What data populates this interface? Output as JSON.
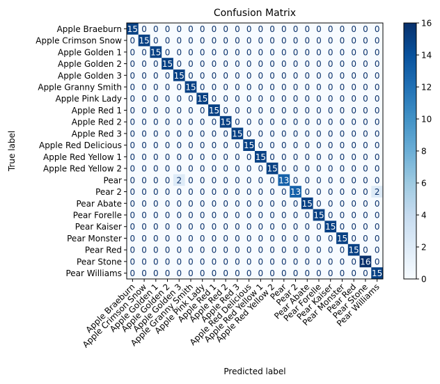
{
  "chart_data": {
    "type": "heatmap",
    "title": "Confusion Matrix",
    "xlabel": "Predicted label",
    "ylabel": "True label",
    "labels": [
      "Apple Braeburn",
      "Apple Crimson Snow",
      "Apple Golden 1",
      "Apple Golden 2",
      "Apple Golden 3",
      "Apple Granny Smith",
      "Apple Pink Lady",
      "Apple Red 1",
      "Apple Red 2",
      "Apple Red 3",
      "Apple Red Delicious",
      "Apple Red Yellow 1",
      "Apple Red Yellow 2",
      "Pear",
      "Pear 2",
      "Pear Abate",
      "Pear Forelle",
      "Pear Kaiser",
      "Pear Monster",
      "Pear Red",
      "Pear Stone",
      "Pear Williams"
    ],
    "matrix": [
      [
        15,
        0,
        0,
        0,
        0,
        0,
        0,
        0,
        0,
        0,
        0,
        0,
        0,
        0,
        0,
        0,
        0,
        0,
        0,
        0,
        0,
        0
      ],
      [
        0,
        15,
        0,
        0,
        0,
        0,
        0,
        0,
        0,
        0,
        0,
        0,
        0,
        0,
        0,
        0,
        0,
        0,
        0,
        0,
        0,
        0
      ],
      [
        0,
        0,
        15,
        0,
        0,
        0,
        0,
        0,
        0,
        0,
        0,
        0,
        0,
        0,
        0,
        0,
        0,
        0,
        0,
        0,
        0,
        0
      ],
      [
        0,
        0,
        0,
        15,
        0,
        0,
        0,
        0,
        0,
        0,
        0,
        0,
        0,
        0,
        0,
        0,
        0,
        0,
        0,
        0,
        0,
        0
      ],
      [
        0,
        0,
        0,
        0,
        15,
        0,
        0,
        0,
        0,
        0,
        0,
        0,
        0,
        0,
        0,
        0,
        0,
        0,
        0,
        0,
        0,
        0
      ],
      [
        0,
        0,
        0,
        0,
        0,
        15,
        0,
        0,
        0,
        0,
        0,
        0,
        0,
        0,
        0,
        0,
        0,
        0,
        0,
        0,
        0,
        0
      ],
      [
        0,
        0,
        0,
        0,
        0,
        0,
        15,
        0,
        0,
        0,
        0,
        0,
        0,
        0,
        0,
        0,
        0,
        0,
        0,
        0,
        0,
        0
      ],
      [
        0,
        0,
        0,
        0,
        0,
        0,
        0,
        15,
        0,
        0,
        0,
        0,
        0,
        0,
        0,
        0,
        0,
        0,
        0,
        0,
        0,
        0
      ],
      [
        0,
        0,
        0,
        0,
        0,
        0,
        0,
        0,
        15,
        0,
        0,
        0,
        0,
        0,
        0,
        0,
        0,
        0,
        0,
        0,
        0,
        0
      ],
      [
        0,
        0,
        0,
        0,
        0,
        0,
        0,
        0,
        0,
        15,
        0,
        0,
        0,
        0,
        0,
        0,
        0,
        0,
        0,
        0,
        0,
        0
      ],
      [
        0,
        0,
        0,
        0,
        0,
        0,
        0,
        0,
        0,
        0,
        15,
        0,
        0,
        0,
        0,
        0,
        0,
        0,
        0,
        0,
        0,
        0
      ],
      [
        0,
        0,
        0,
        0,
        0,
        0,
        0,
        0,
        0,
        0,
        0,
        15,
        0,
        0,
        0,
        0,
        0,
        0,
        0,
        0,
        0,
        0
      ],
      [
        0,
        0,
        0,
        0,
        0,
        0,
        0,
        0,
        0,
        0,
        0,
        0,
        15,
        0,
        0,
        0,
        0,
        0,
        0,
        0,
        0,
        0
      ],
      [
        0,
        0,
        0,
        0,
        2,
        0,
        0,
        0,
        0,
        0,
        0,
        0,
        0,
        13,
        0,
        0,
        0,
        0,
        0,
        0,
        0,
        0
      ],
      [
        0,
        0,
        0,
        0,
        0,
        0,
        0,
        0,
        0,
        0,
        0,
        0,
        0,
        0,
        13,
        0,
        0,
        0,
        0,
        0,
        0,
        2
      ],
      [
        0,
        0,
        0,
        0,
        0,
        0,
        0,
        0,
        0,
        0,
        0,
        0,
        0,
        0,
        0,
        15,
        0,
        0,
        0,
        0,
        0,
        0
      ],
      [
        0,
        0,
        0,
        0,
        0,
        0,
        0,
        0,
        0,
        0,
        0,
        0,
        0,
        0,
        0,
        0,
        15,
        0,
        0,
        0,
        0,
        0
      ],
      [
        0,
        0,
        0,
        0,
        0,
        0,
        0,
        0,
        0,
        0,
        0,
        0,
        0,
        0,
        0,
        0,
        0,
        15,
        0,
        0,
        0,
        0
      ],
      [
        0,
        0,
        0,
        0,
        0,
        0,
        0,
        0,
        0,
        0,
        0,
        0,
        0,
        0,
        0,
        0,
        0,
        0,
        15,
        0,
        0,
        0
      ],
      [
        0,
        0,
        0,
        0,
        0,
        0,
        0,
        0,
        0,
        0,
        0,
        0,
        0,
        0,
        0,
        0,
        0,
        0,
        0,
        15,
        0,
        0
      ],
      [
        0,
        0,
        0,
        0,
        0,
        0,
        0,
        0,
        0,
        0,
        0,
        0,
        0,
        0,
        0,
        0,
        0,
        0,
        0,
        0,
        16,
        0
      ],
      [
        0,
        0,
        0,
        0,
        0,
        0,
        0,
        0,
        0,
        0,
        0,
        0,
        0,
        0,
        0,
        0,
        0,
        0,
        0,
        0,
        0,
        15
      ]
    ],
    "colormap": "Blues",
    "colorbar": {
      "range": [
        0,
        16
      ],
      "ticks": [
        0,
        2,
        4,
        6,
        8,
        10,
        12,
        14,
        16
      ]
    },
    "grid": false
  }
}
